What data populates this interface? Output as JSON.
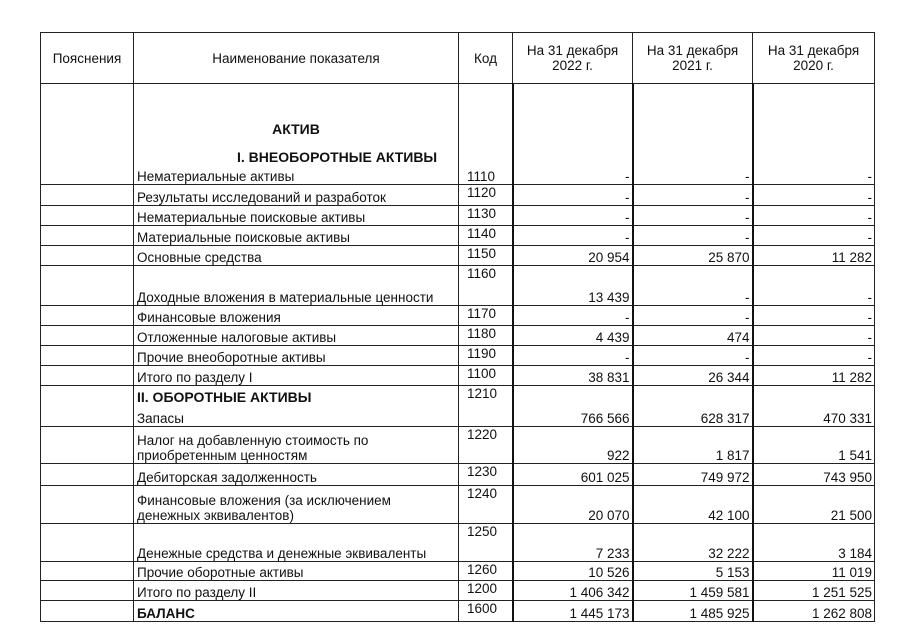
{
  "header": {
    "notes": "Пояснения",
    "name": "Наименование показателя",
    "code": "Код",
    "col1": "На 31 декабря 2022 г.",
    "col2": "На 31 декабря 2021 г.",
    "col3": "На 31 декабря 2020 г."
  },
  "sections": {
    "asset": "АКТИВ",
    "noncurrent": "I. ВНЕОБОРОТНЫЕ АКТИВЫ",
    "current": "II. ОБОРОТНЫЕ АКТИВЫ"
  },
  "rows": [
    {
      "name": "Нематериальные активы",
      "code": "1110",
      "v1": "-",
      "v2": "-",
      "v3": "-"
    },
    {
      "name": "Результаты исследований и разработок",
      "code": "1120",
      "v1": "-",
      "v2": "-",
      "v3": "-"
    },
    {
      "name": "Нематериальные поисковые активы",
      "code": "1130",
      "v1": "-",
      "v2": "-",
      "v3": "-"
    },
    {
      "name": "Материальные поисковые активы",
      "code": "1140",
      "v1": "-",
      "v2": "-",
      "v3": "-"
    },
    {
      "name": "Основные средства",
      "code": "1150",
      "v1": "20 954",
      "v2": "25 870",
      "v3": "11 282"
    },
    {
      "name": "Доходные вложения в материальные ценности",
      "code": "1160",
      "v1": "13 439",
      "v2": "-",
      "v3": "-"
    },
    {
      "name": "Финансовые вложения",
      "code": "1170",
      "v1": "-",
      "v2": "-",
      "v3": "-"
    },
    {
      "name": "Отложенные налоговые активы",
      "code": "1180",
      "v1": "4 439",
      "v2": "474",
      "v3": "-"
    },
    {
      "name": "Прочие внеоборотные активы",
      "code": "1190",
      "v1": "-",
      "v2": "-",
      "v3": "-"
    },
    {
      "name": "Итого по разделу I",
      "code": "1100",
      "v1": "38 831",
      "v2": "26 344",
      "v3": "11 282"
    },
    {
      "name": "Запасы",
      "code": "1210",
      "v1": "766 566",
      "v2": "628 317",
      "v3": "470 331"
    },
    {
      "name": "Налог на добавленную стоимость по приобретенным ценностям",
      "code": "1220",
      "v1": "922",
      "v2": "1 817",
      "v3": "1 541"
    },
    {
      "name": "Дебиторская задолженность",
      "code": "1230",
      "v1": "601 025",
      "v2": "749 972",
      "v3": "743 950"
    },
    {
      "name": "Финансовые вложения (за исключением денежных эквивалентов)",
      "code": "1240",
      "v1": "20 070",
      "v2": "42 100",
      "v3": "21 500"
    },
    {
      "name": "Денежные средства и денежные эквиваленты",
      "code": "1250",
      "v1": "7 233",
      "v2": "32 222",
      "v3": "3 184"
    },
    {
      "name": "Прочие оборотные активы",
      "code": "1260",
      "v1": "10 526",
      "v2": "5 153",
      "v3": "11 019"
    },
    {
      "name": "Итого по разделу II",
      "code": "1200",
      "v1": "1 406 342",
      "v2": "1 459 581",
      "v3": "1 251 525"
    },
    {
      "name": "БАЛАНС",
      "code": "1600",
      "v1": "1 445 173",
      "v2": "1 485 925",
      "v3": "1 262 808"
    }
  ]
}
